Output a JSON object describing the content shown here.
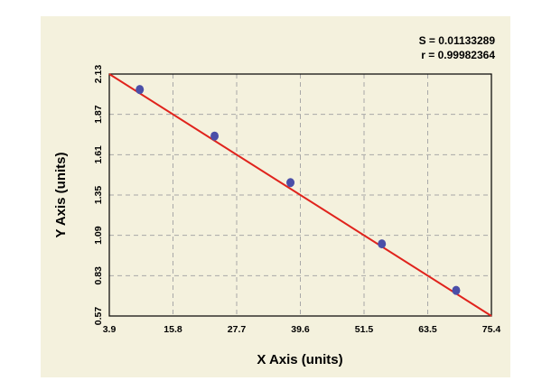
{
  "chart_data": {
    "type": "scatter",
    "xlabel": "X Axis (units)",
    "ylabel": "Y Axis (units)",
    "xlim": [
      3.9,
      75.4
    ],
    "ylim": [
      0.57,
      2.13
    ],
    "x_ticks": [
      "3.9",
      "15.8",
      "27.7",
      "39.6",
      "51.5",
      "63.5",
      "75.4"
    ],
    "y_ticks": [
      "0.57",
      "0.83",
      "1.09",
      "1.35",
      "1.61",
      "1.87",
      "2.13"
    ],
    "grid": true,
    "stats": {
      "s_label": "S = 0.01133289",
      "r_label": "r = 0.99982364"
    },
    "series": [
      {
        "points": [
          {
            "x": 9.6,
            "y": 2.03
          },
          {
            "x": 23.6,
            "y": 1.73
          },
          {
            "x": 37.8,
            "y": 1.43
          },
          {
            "x": 54.9,
            "y": 1.035
          },
          {
            "x": 68.8,
            "y": 0.735
          }
        ]
      }
    ],
    "fit_line": {
      "x": [
        3.9,
        75.4
      ],
      "y": [
        2.13,
        0.57
      ]
    },
    "colors": {
      "point": "#4b4fa8",
      "line": "#e0231c",
      "grid": "#a8a8a8",
      "panel": "#f4f1dd"
    }
  }
}
